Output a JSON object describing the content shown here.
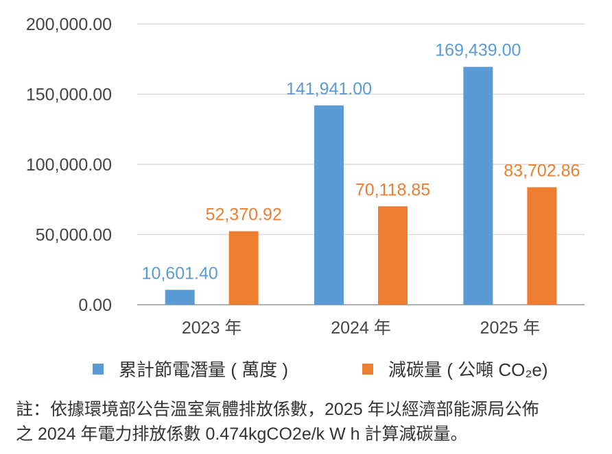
{
  "chart_data": {
    "type": "bar",
    "categories": [
      "2023 年",
      "2024 年",
      "2025 年"
    ],
    "series": [
      {
        "name": "累計節電潛量 ( 萬度 )",
        "values": [
          10601.4,
          141941.0,
          169439.0
        ],
        "labels": [
          "10,601.40",
          "141,941.00",
          "169,439.00"
        ],
        "color": "#5b9bd5"
      },
      {
        "name": "減碳量 ( 公噸 CO₂e)",
        "values": [
          52370.92,
          70118.85,
          83702.86
        ],
        "labels": [
          "52,370.92",
          "70,118.85",
          "83,702.86"
        ],
        "color": "#ed7d31"
      }
    ],
    "y_ticks": [
      "0.00",
      "50,000.00",
      "100,000.00",
      "150,000.00",
      "200,000.00"
    ],
    "ylim": [
      0,
      200000
    ],
    "grid": true,
    "legend_position": "bottom"
  },
  "note": {
    "line1": "註：依據環境部公告溫室氣體排放係數，2025 年以經濟部能源局公佈",
    "line2": "之 2024 年電力排放係數 0.474kgCO2e/k W h 計算減碳量。"
  }
}
